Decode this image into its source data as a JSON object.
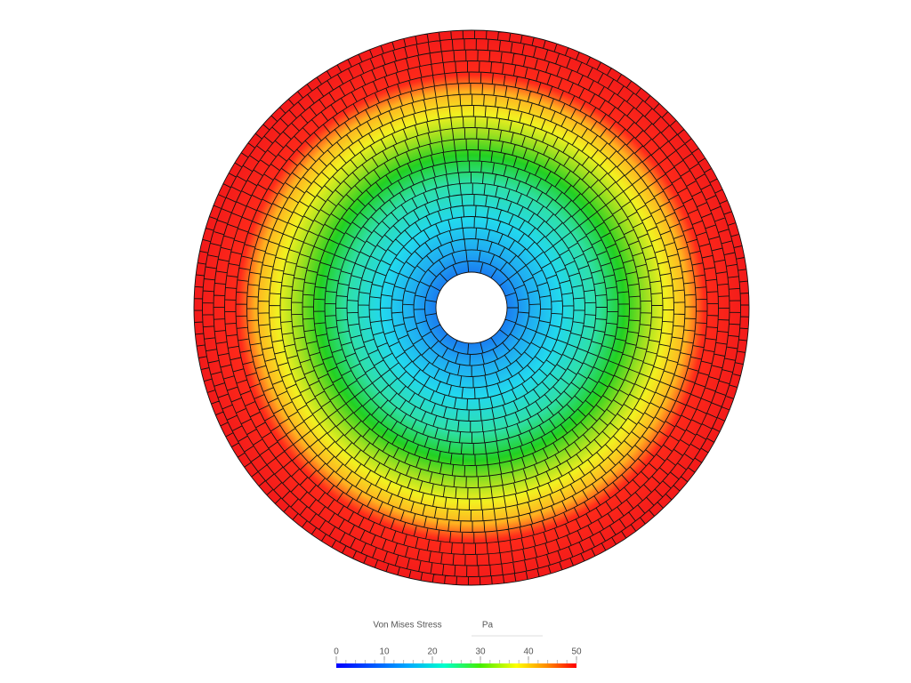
{
  "legend": {
    "title": "Von Mises Stress",
    "unit": "Pa",
    "range": [
      0,
      50
    ],
    "ticks": [
      0,
      10,
      20,
      30,
      40,
      50
    ]
  }
}
